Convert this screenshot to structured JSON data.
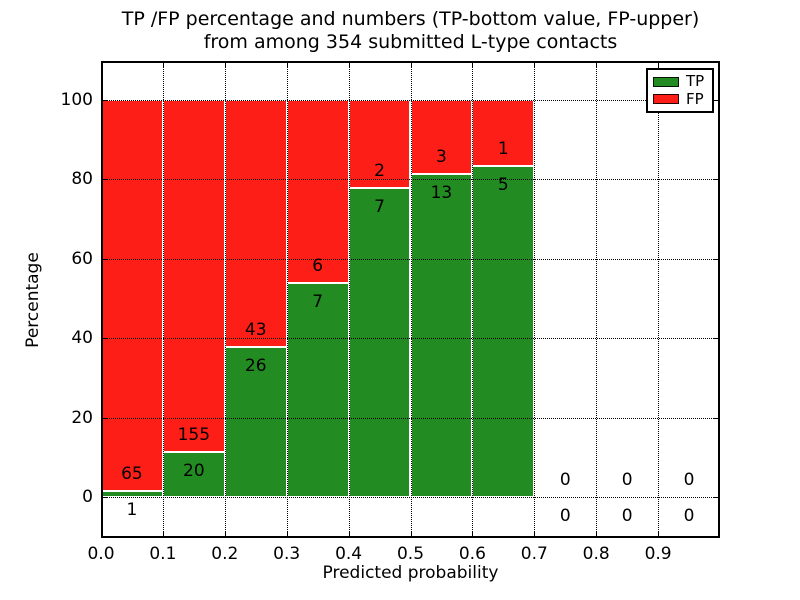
{
  "figure": {
    "title_line1": "TP /FP percentage and numbers (TP-bottom value, FP-upper)",
    "title_line2": "from among 354 submitted L-type contacts",
    "xlabel": "Predicted probability",
    "ylabel": "Percentage"
  },
  "legend": {
    "position": "upper right",
    "items": [
      {
        "label": "TP",
        "color": "#228B22"
      },
      {
        "label": "FP",
        "color": "#FD1E17"
      }
    ]
  },
  "chart_data": {
    "type": "bar",
    "subtype": "stacked-percentage",
    "title": "TP /FP percentage and numbers (TP-bottom value, FP-upper) from among 354 submitted L-type contacts",
    "xlabel": "Predicted probability",
    "ylabel": "Percentage",
    "total_contacts": 354,
    "bin_width": 0.1,
    "bin_starts": [
      0.0,
      0.1,
      0.2,
      0.3,
      0.4,
      0.5,
      0.6,
      0.7,
      0.8,
      0.9
    ],
    "x_tick_labels": [
      "0.0",
      "0.1",
      "0.2",
      "0.3",
      "0.4",
      "0.5",
      "0.6",
      "0.7",
      "0.8",
      "0.9"
    ],
    "y_tick_labels": [
      "0",
      "20",
      "40",
      "60",
      "80",
      "100"
    ],
    "y_ticks": [
      0,
      20,
      40,
      60,
      80,
      100
    ],
    "xlim": [
      0.0,
      1.0
    ],
    "ylim": [
      -10.3,
      109.7
    ],
    "grid": true,
    "grid_style": "dotted",
    "series": [
      {
        "name": "TP",
        "color": "#228B22",
        "counts": [
          1,
          20,
          26,
          7,
          7,
          13,
          5,
          0,
          0,
          0
        ],
        "percentages": [
          1.52,
          11.43,
          37.68,
          53.85,
          77.78,
          81.25,
          83.33,
          0,
          0,
          0
        ]
      },
      {
        "name": "FP",
        "color": "#FD1E17",
        "counts": [
          65,
          155,
          43,
          6,
          2,
          3,
          1,
          0,
          0,
          0
        ],
        "percentages": [
          98.48,
          88.57,
          62.32,
          46.15,
          22.22,
          18.75,
          16.67,
          0,
          0,
          0
        ]
      }
    ]
  }
}
